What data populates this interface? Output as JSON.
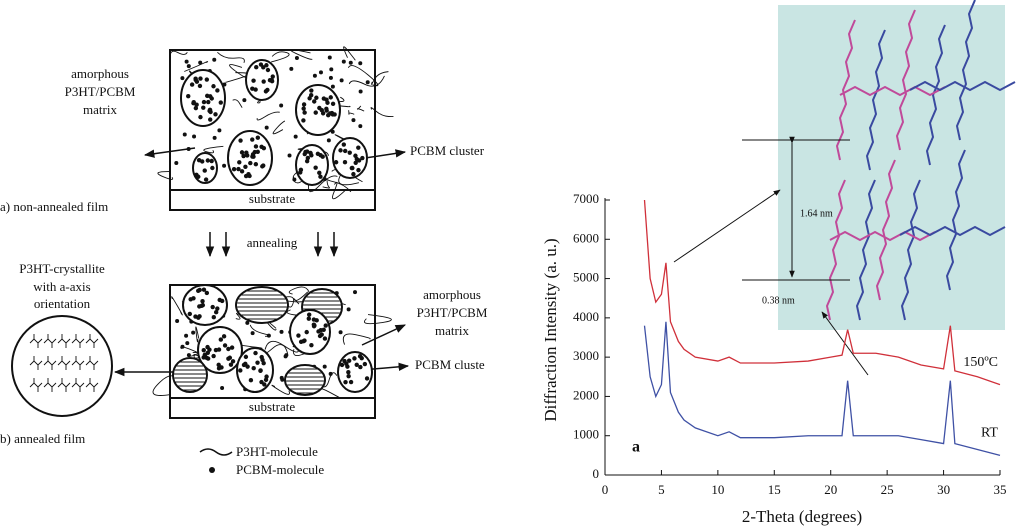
{
  "diagram": {
    "top_panel": {
      "matrix_label": [
        "amorphous",
        "P3HT/PCBM",
        "matrix"
      ],
      "cluster_label": "PCBM cluster",
      "substrate": "substrate",
      "caption": "a) non-annealed film"
    },
    "process": "annealing",
    "bottom_panel": {
      "crystallite_label": [
        "P3HT-crystallite",
        "with a-axis",
        "orientation"
      ],
      "matrix_label": [
        "amorphous",
        "P3HT/PCBM",
        "matrix"
      ],
      "cluster_label": "PCBM cluste",
      "substrate": "substrate",
      "caption": "b) annealed film"
    },
    "legend": [
      "P3HT-molecule",
      "PCBM-molecule"
    ]
  },
  "chart_data": {
    "type": "line",
    "x_label": "2-Theta (degrees)",
    "y_label": "Diffraction Intensity (a. u.)",
    "panel_label": "a",
    "inset_labels": [
      "1.64 nm",
      "0.38 nm"
    ],
    "x": [
      3.5,
      4,
      4.5,
      5,
      5.4,
      5.8,
      6.5,
      7,
      8,
      10,
      11,
      12,
      15,
      18,
      20,
      21,
      21.5,
      22,
      24,
      26,
      28,
      30,
      30.6,
      31,
      33,
      35
    ],
    "series": [
      {
        "name": "150ºC",
        "color": "#d0303a",
        "values": [
          7000,
          5000,
          4400,
          4600,
          5400,
          3900,
          3400,
          3200,
          3000,
          2900,
          3000,
          2850,
          2850,
          2900,
          3000,
          3050,
          3700,
          3100,
          3100,
          3000,
          2800,
          2700,
          3800,
          2650,
          2500,
          2300
        ]
      },
      {
        "name": "RT",
        "color": "#3f51a5",
        "values": [
          3800,
          2500,
          2000,
          2300,
          3900,
          2100,
          1600,
          1400,
          1200,
          1000,
          1100,
          950,
          950,
          1000,
          1000,
          1000,
          2400,
          1000,
          1000,
          1000,
          900,
          800,
          2400,
          800,
          650,
          500
        ]
      }
    ],
    "xlim": [
      0,
      35
    ],
    "xticks": [
      0,
      5,
      10,
      15,
      20,
      25,
      30,
      35
    ],
    "ylim": [
      0,
      7000
    ],
    "yticks": [
      0,
      1000,
      2000,
      3000,
      4000,
      5000,
      6000,
      7000
    ]
  }
}
